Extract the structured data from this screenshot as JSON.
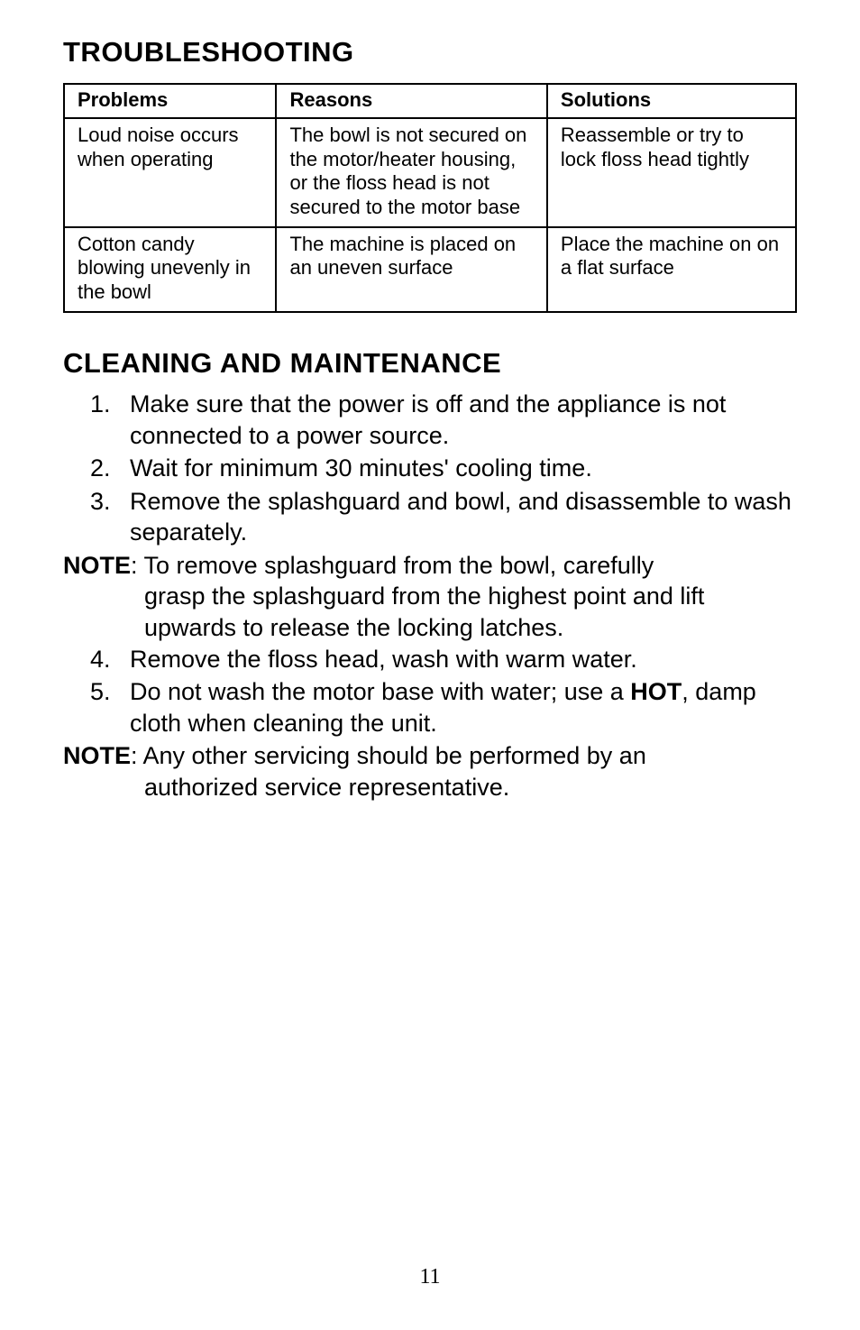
{
  "headings": {
    "troubleshooting": "TROUBLESHOOTING",
    "cleaning": "CLEANING AND MAINTENANCE"
  },
  "table": {
    "headers": {
      "problems": "Problems",
      "reasons": "Reasons",
      "solutions": "Solutions"
    },
    "rows": [
      {
        "problem": "Loud noise occurs when operating",
        "reason": "The bowl is not secured on the motor/heater housing, or the floss head is not secured to the motor base",
        "solution": "Reassemble or try to lock floss head tightly"
      },
      {
        "problem": "Cotton candy blowing unevenly in the bowl",
        "reason": "The machine is placed on an uneven surface",
        "solution": "Place the machine on on a flat surface"
      }
    ]
  },
  "list1": {
    "item1": {
      "num": "1.",
      "text": "Make sure that the power is off and the appliance is not connected to a power source."
    },
    "item2": {
      "num": "2.",
      "text": "Wait for minimum 30 minutes' cooling time."
    },
    "item3": {
      "num": "3.",
      "text": "Remove the splashguard and bowl, and disassemble to wash separately."
    }
  },
  "note1": {
    "label": "NOTE",
    "line1": ": To remove splashguard from the bowl, carefully",
    "line2": "grasp the splashguard from the highest point and lift upwards to release the locking latches."
  },
  "list2": {
    "item4": {
      "num": "4.",
      "text": "Remove the floss head, wash with warm water."
    },
    "item5": {
      "num": "5.",
      "text_before": "Do not wash the motor base with water; use a ",
      "hot": "HOT",
      "text_after": ", damp cloth when cleaning the unit."
    }
  },
  "note2": {
    "label": "NOTE",
    "line1": ": Any other servicing should be performed by an",
    "line2": "authorized service representative."
  },
  "page_number": "11"
}
